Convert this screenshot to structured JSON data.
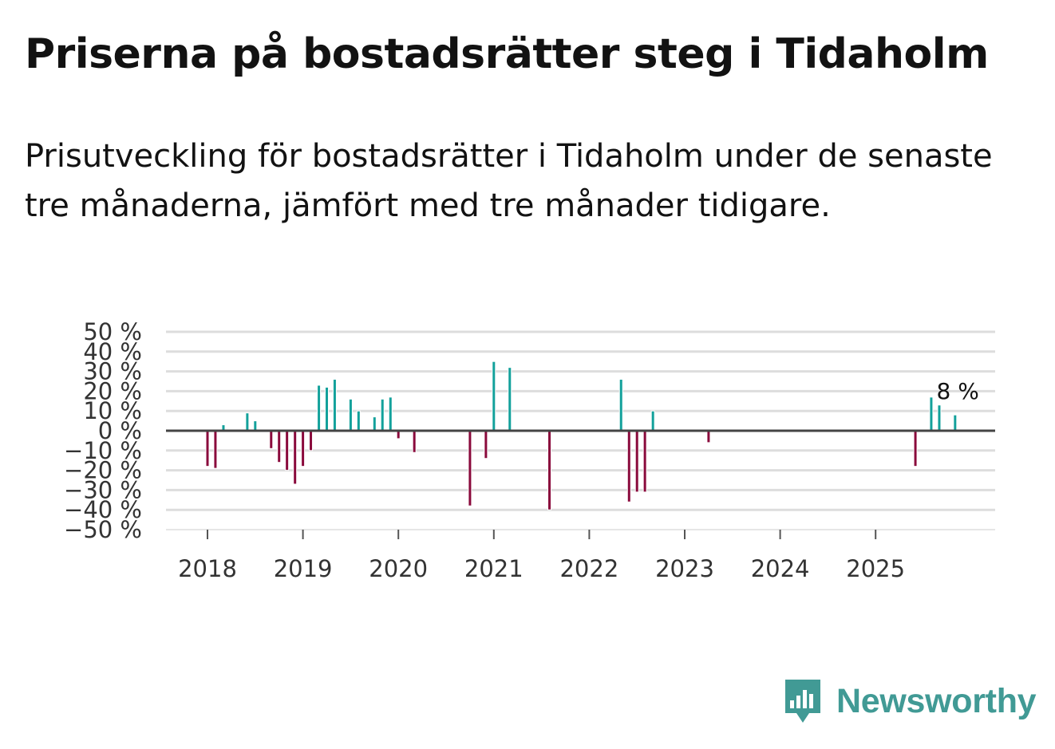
{
  "title": "Priserna på bostadsrätter steg i Tidaholm",
  "subtitle": "Prisutveckling för bostadsrätter i Tidaholm under de senaste tre månaderna, jämfört med tre månader tidigare.",
  "logo": {
    "text": "Newsworthy"
  },
  "colors": {
    "positive": "#13a19b",
    "negative": "#8a0a3c",
    "grid": "#dddddd",
    "zero_line": "#444444",
    "brand": "#419a95"
  },
  "chart_data": {
    "type": "bar",
    "title": "Priserna på bostadsrätter steg i Tidaholm",
    "xlabel": "",
    "ylabel": "",
    "ylim": [
      -50,
      50
    ],
    "y_ticks": [
      50,
      40,
      30,
      20,
      10,
      0,
      -10,
      -20,
      -30,
      -40,
      -50
    ],
    "y_tick_labels": [
      "50 %",
      "40 %",
      "30 %",
      "20 %",
      "10 %",
      "0 %",
      "−10 %",
      "−20 %",
      "−30 %",
      "−40 %",
      "−50 %"
    ],
    "x_ticks": [
      2018,
      2019,
      2020,
      2021,
      2022,
      2023,
      2024,
      2025
    ],
    "x_tick_labels": [
      "2018",
      "2019",
      "2020",
      "2021",
      "2022",
      "2023",
      "2024",
      "2025"
    ],
    "x_range": [
      2017.6,
      2026.3
    ],
    "grid": true,
    "annotation": {
      "text": "8 %"
    },
    "series": [
      {
        "name": "Prisutveckling",
        "points": [
          {
            "x": 2018.0,
            "value": -18
          },
          {
            "x": 2018.083,
            "value": -19
          },
          {
            "x": 2018.167,
            "value": 3
          },
          {
            "x": 2018.417,
            "value": 9
          },
          {
            "x": 2018.5,
            "value": 5
          },
          {
            "x": 2018.667,
            "value": -9
          },
          {
            "x": 2018.75,
            "value": -16
          },
          {
            "x": 2018.833,
            "value": -20
          },
          {
            "x": 2018.917,
            "value": -27
          },
          {
            "x": 2019.0,
            "value": -18
          },
          {
            "x": 2019.083,
            "value": -10
          },
          {
            "x": 2019.167,
            "value": 23
          },
          {
            "x": 2019.25,
            "value": 22
          },
          {
            "x": 2019.333,
            "value": 26
          },
          {
            "x": 2019.5,
            "value": 16
          },
          {
            "x": 2019.583,
            "value": 10
          },
          {
            "x": 2019.75,
            "value": 7
          },
          {
            "x": 2019.833,
            "value": 16
          },
          {
            "x": 2019.917,
            "value": 17
          },
          {
            "x": 2020.0,
            "value": -4
          },
          {
            "x": 2020.167,
            "value": -11
          },
          {
            "x": 2020.75,
            "value": -38
          },
          {
            "x": 2020.917,
            "value": -14
          },
          {
            "x": 2021.0,
            "value": 35
          },
          {
            "x": 2021.167,
            "value": 32
          },
          {
            "x": 2021.583,
            "value": -40
          },
          {
            "x": 2022.333,
            "value": 26
          },
          {
            "x": 2022.417,
            "value": -36
          },
          {
            "x": 2022.5,
            "value": -31
          },
          {
            "x": 2022.583,
            "value": -31
          },
          {
            "x": 2022.667,
            "value": 10
          },
          {
            "x": 2023.25,
            "value": -6
          },
          {
            "x": 2025.417,
            "value": -18
          },
          {
            "x": 2025.583,
            "value": 17
          },
          {
            "x": 2025.667,
            "value": 13
          },
          {
            "x": 2025.833,
            "value": 8
          }
        ]
      }
    ]
  }
}
